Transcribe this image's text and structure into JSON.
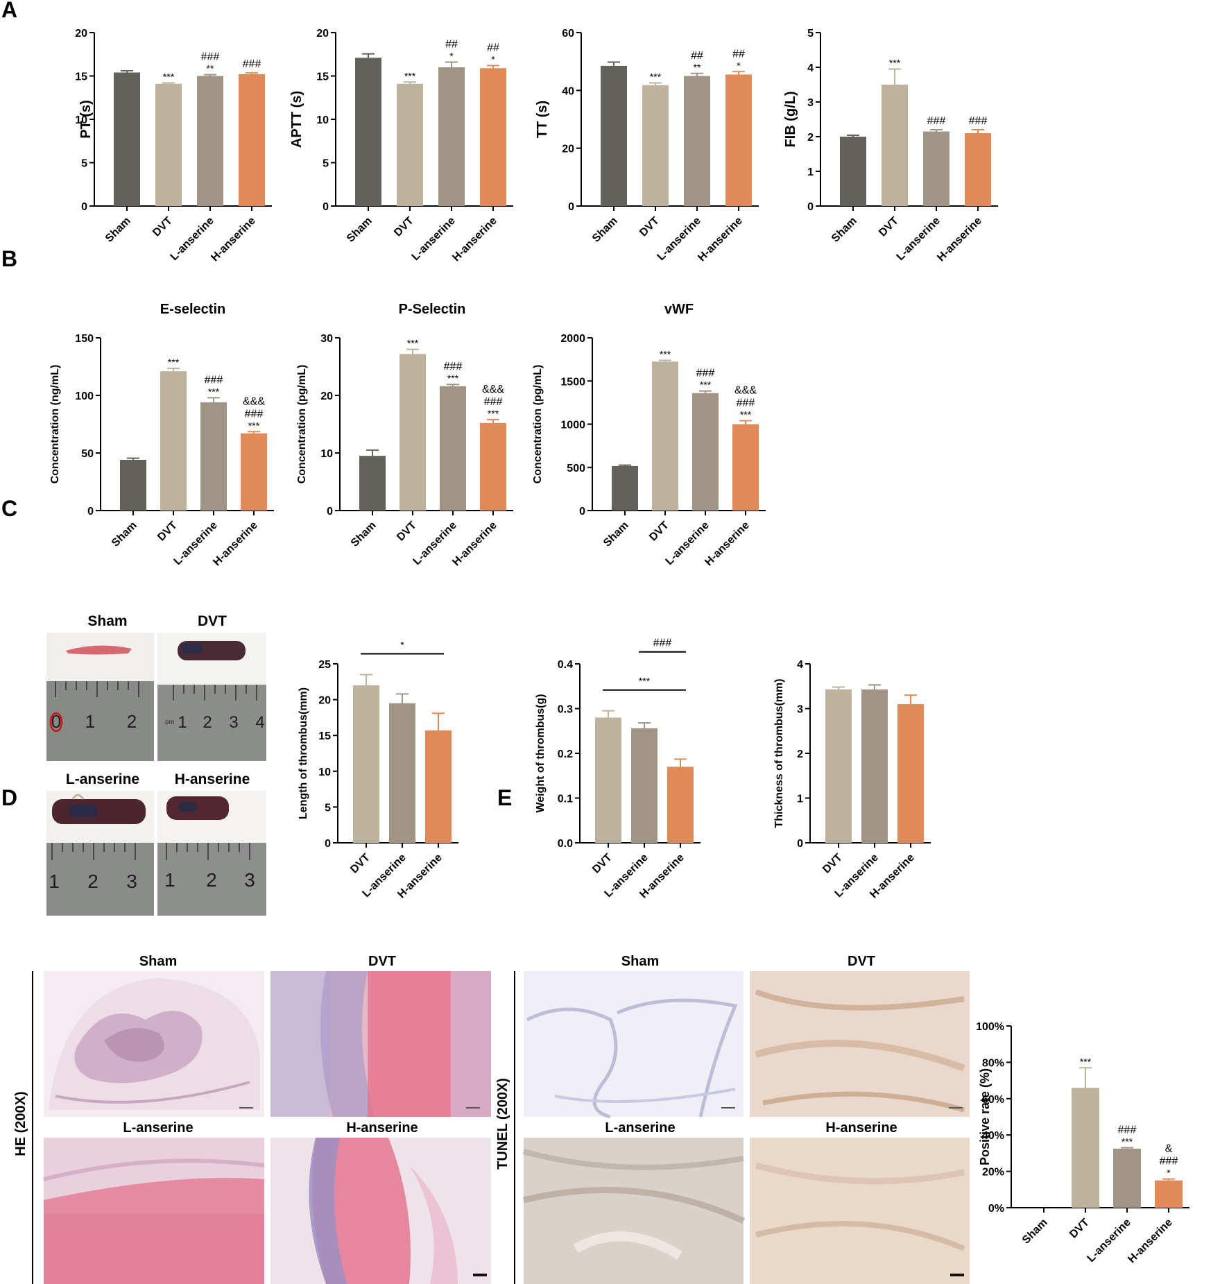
{
  "panels": {
    "a": "A",
    "b": "B",
    "c": "C",
    "d": "D",
    "e": "E"
  },
  "colors": {
    "sham": "#62615b",
    "dvt": "#bdb39d",
    "l_anserine": "#a09484",
    "h_anserine": "#e08b57",
    "axis": "#000000",
    "ruler": "#8b8d8a",
    "blood": "#5a1d24",
    "he_pink": "#e2a3b6",
    "he_purple": "#b8a4cc",
    "tunel_tan": "#ddc3ae",
    "tunel_blue": "#c6c7dd"
  },
  "chart_data": [
    {
      "id": "pt",
      "type": "bar",
      "categories": [
        "Sham",
        "DVT",
        "L-anserine",
        "H-anserine"
      ],
      "values": [
        15.4,
        14.1,
        15.0,
        15.2
      ],
      "errors": [
        0.2,
        0.1,
        0.15,
        0.15
      ],
      "ylabel": "PT (s)",
      "ylim": [
        0,
        20
      ],
      "yticks": [
        "0",
        "5",
        "10",
        "15",
        "20"
      ],
      "sig": [
        [],
        [
          "***"
        ],
        [
          "**",
          "###"
        ],
        [
          "###"
        ]
      ]
    },
    {
      "id": "aptt",
      "type": "bar",
      "categories": [
        "Sham",
        "DVT",
        "L-anserine",
        "H-anserine"
      ],
      "values": [
        17.1,
        14.1,
        16.0,
        15.9
      ],
      "errors": [
        0.45,
        0.2,
        0.6,
        0.3
      ],
      "ylabel": "APTT (s)",
      "ylim": [
        0,
        20
      ],
      "yticks": [
        "0",
        "5",
        "10",
        "15",
        "20"
      ],
      "sig": [
        [],
        [
          "***"
        ],
        [
          "*",
          "##"
        ],
        [
          "*",
          "##"
        ]
      ]
    },
    {
      "id": "tt",
      "type": "bar",
      "categories": [
        "Sham",
        "DVT",
        "L-anserine",
        "H-anserine"
      ],
      "values": [
        48.5,
        41.8,
        45.0,
        45.5
      ],
      "errors": [
        1.3,
        0.8,
        0.9,
        1.0
      ],
      "ylabel": "TT (s)",
      "ylim": [
        0,
        60
      ],
      "yticks": [
        "0",
        "20",
        "40",
        "60"
      ],
      "sig": [
        [],
        [
          "***"
        ],
        [
          "**",
          "##"
        ],
        [
          "*",
          "##"
        ]
      ]
    },
    {
      "id": "fib",
      "type": "bar",
      "categories": [
        "Sham",
        "DVT",
        "L-anserine",
        "H-anserine"
      ],
      "values": [
        2.0,
        3.5,
        2.15,
        2.1
      ],
      "errors": [
        0.04,
        0.45,
        0.05,
        0.1
      ],
      "ylabel": "FIB (g/L)",
      "ylim": [
        0,
        5
      ],
      "yticks": [
        "0",
        "1",
        "2",
        "3",
        "4",
        "5"
      ],
      "sig": [
        [],
        [
          "***"
        ],
        [
          "###"
        ],
        [
          "###"
        ]
      ]
    },
    {
      "id": "eselectin",
      "type": "bar",
      "title": "E-selectin",
      "categories": [
        "Sham",
        "DVT",
        "L-anserine",
        "H-anserine"
      ],
      "values": [
        44,
        121,
        94,
        67
      ],
      "errors": [
        1.5,
        2.5,
        4,
        1.5
      ],
      "ylabel": "Concentration (ng/mL)",
      "ylim": [
        0,
        150
      ],
      "yticks": [
        "0",
        "50",
        "100",
        "150"
      ],
      "sig": [
        [],
        [
          "***"
        ],
        [
          "***",
          "###"
        ],
        [
          "***",
          "###",
          "&&&"
        ]
      ]
    },
    {
      "id": "pselectin",
      "type": "bar",
      "title": "P-Selectin",
      "categories": [
        "Sham",
        "DVT",
        "L-anserine",
        "H-anserine"
      ],
      "values": [
        9.5,
        27.2,
        21.6,
        15.2
      ],
      "errors": [
        1.0,
        0.8,
        0.3,
        0.6
      ],
      "ylabel": "Concentration (pg/mL)",
      "ylim": [
        0,
        30
      ],
      "yticks": [
        "0",
        "10",
        "20",
        "30"
      ],
      "sig": [
        [],
        [
          "***"
        ],
        [
          "***",
          "###"
        ],
        [
          "***",
          "###",
          "&&&"
        ]
      ]
    },
    {
      "id": "vwf",
      "type": "bar",
      "title": "vWF",
      "categories": [
        "Sham",
        "DVT",
        "L-anserine",
        "H-anserine"
      ],
      "values": [
        515,
        1725,
        1360,
        1000
      ],
      "errors": [
        10,
        15,
        25,
        40
      ],
      "ylabel": "Concentration (pg/mL)",
      "ylim": [
        0,
        2000
      ],
      "yticks": [
        "0",
        "500",
        "1000",
        "1500",
        "2000"
      ],
      "sig": [
        [],
        [
          "***"
        ],
        [
          "***",
          "###"
        ],
        [
          "***",
          "###",
          "&&&"
        ]
      ]
    },
    {
      "id": "length",
      "type": "bar",
      "categories": [
        "DVT",
        "L-anserine",
        "H-anserine"
      ],
      "values": [
        22.0,
        19.5,
        15.7
      ],
      "errors": [
        1.5,
        1.3,
        2.4
      ],
      "ylabel": "Length of thrombus(mm)",
      "ylim": [
        0,
        25
      ],
      "yticks": [
        "0",
        "5",
        "10",
        "15",
        "20",
        "25"
      ],
      "brackets": [
        {
          "from": 0,
          "to": 2,
          "label": "*"
        }
      ]
    },
    {
      "id": "weight",
      "type": "bar",
      "categories": [
        "DVT",
        "L-anserine",
        "H-anserine"
      ],
      "values": [
        0.28,
        0.256,
        0.17
      ],
      "errors": [
        0.015,
        0.012,
        0.017
      ],
      "ylabel": "Weight of thrombus(g)",
      "ylim": [
        0,
        0.4
      ],
      "yticks": [
        "0.0",
        "0.1",
        "0.2",
        "0.3",
        "0.4"
      ],
      "brackets": [
        {
          "from": 0,
          "to": 2,
          "label": "***"
        },
        {
          "from": 1,
          "to": 2,
          "label": "###"
        }
      ]
    },
    {
      "id": "thickness",
      "type": "bar",
      "categories": [
        "DVT",
        "L-anserine",
        "H-anserine"
      ],
      "values": [
        3.43,
        3.43,
        3.1
      ],
      "errors": [
        0.05,
        0.1,
        0.2
      ],
      "ylabel": "Thickness of thrombus(mm)",
      "ylim": [
        0,
        4
      ],
      "yticks": [
        "0",
        "1",
        "2",
        "3",
        "4"
      ]
    },
    {
      "id": "positive",
      "type": "bar",
      "categories": [
        "Sham",
        "DVT",
        "L-anserine",
        "H-anserine"
      ],
      "values": [
        0,
        66,
        32.5,
        15
      ],
      "errors": [
        0,
        11,
        0.5,
        0.8
      ],
      "ylabel": "Positive rate (%)",
      "ylim": [
        0,
        100
      ],
      "yticks": [
        "0%",
        "20%",
        "40%",
        "60%",
        "80%",
        "100%"
      ],
      "sig": [
        [],
        [
          "***"
        ],
        [
          "***",
          "###"
        ],
        [
          "*",
          "###",
          "&"
        ]
      ]
    }
  ],
  "photos_c": {
    "labels": [
      "Sham",
      "DVT",
      "L-anserine",
      "H-anserine"
    ],
    "ruler_numbers": [
      [
        "0",
        "1",
        "2"
      ],
      [
        "cm",
        "1",
        "2",
        "3",
        "4"
      ],
      [
        "1",
        "2",
        "3"
      ],
      [
        "1",
        "2",
        "3"
      ]
    ]
  },
  "photos_d": {
    "side_label": "HE (200X)",
    "labels": [
      "Sham",
      "DVT",
      "L-anserine",
      "H-anserine"
    ]
  },
  "photos_e": {
    "side_label": "TUNEL (200X)",
    "labels": [
      "Sham",
      "DVT",
      "L-anserine",
      "H-anserine"
    ]
  }
}
